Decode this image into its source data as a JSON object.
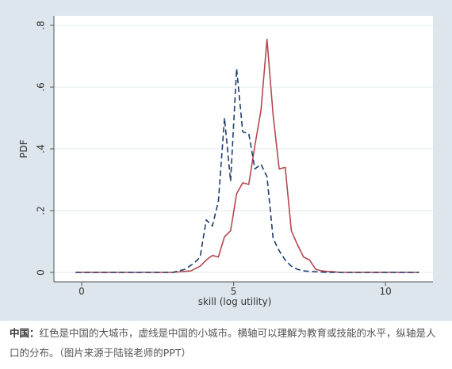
{
  "chart_data": {
    "type": "line",
    "title": "",
    "xlabel": "skill (log utility)",
    "ylabel": "PDF",
    "xlim": [
      -0.6,
      11.3
    ],
    "ylim": [
      0,
      0.8
    ],
    "xticks": [
      0,
      5,
      10
    ],
    "yticks": [
      0,
      0.2,
      0.4,
      0.6,
      0.8
    ],
    "xtick_labels": [
      "0",
      "5",
      "10"
    ],
    "ytick_labels": [
      "0",
      ".2",
      ".4",
      ".6",
      ".8"
    ],
    "grid": "horizontal",
    "legend": "none",
    "series": [
      {
        "style": "solid",
        "color": "#b5484f",
        "x": [
          -0.2,
          3.0,
          3.6,
          3.9,
          4.1,
          4.3,
          4.5,
          4.7,
          4.9,
          5.1,
          5.3,
          5.5,
          5.7,
          5.9,
          6.1,
          6.3,
          6.5,
          6.7,
          6.9,
          7.1,
          7.3,
          7.5,
          7.7,
          7.9,
          8.1,
          8.3,
          8.5,
          9.0,
          11.1
        ],
        "y": [
          0,
          0,
          0.005,
          0.02,
          0.04,
          0.055,
          0.05,
          0.115,
          0.135,
          0.255,
          0.29,
          0.285,
          0.41,
          0.525,
          0.755,
          0.51,
          0.335,
          0.34,
          0.135,
          0.09,
          0.05,
          0.04,
          0.01,
          0.005,
          0.003,
          0.002,
          0,
          0,
          0
        ]
      },
      {
        "style": "dashed",
        "color": "#1f3f6e",
        "x": [
          -0.2,
          3.0,
          3.4,
          3.7,
          3.9,
          4.1,
          4.3,
          4.5,
          4.7,
          4.9,
          5.1,
          5.3,
          5.5,
          5.7,
          5.9,
          6.1,
          6.3,
          6.5,
          6.7,
          6.9,
          7.1,
          7.3,
          7.5,
          7.7,
          7.9,
          8.1,
          8.5,
          11.1
        ],
        "y": [
          0,
          0,
          0.01,
          0.03,
          0.05,
          0.17,
          0.15,
          0.23,
          0.5,
          0.295,
          0.66,
          0.455,
          0.45,
          0.335,
          0.35,
          0.31,
          0.11,
          0.07,
          0.04,
          0.02,
          0.01,
          0.005,
          0.003,
          0.002,
          0.001,
          0,
          0,
          0
        ]
      }
    ]
  },
  "caption": {
    "lead": "中国：",
    "text": "红色是中国的大城市，虚线是中国的小城市。横轴可以理解为教育或技能的水平，纵轴是人口的分布。（图片来源于陆铭老师的PPT）"
  }
}
